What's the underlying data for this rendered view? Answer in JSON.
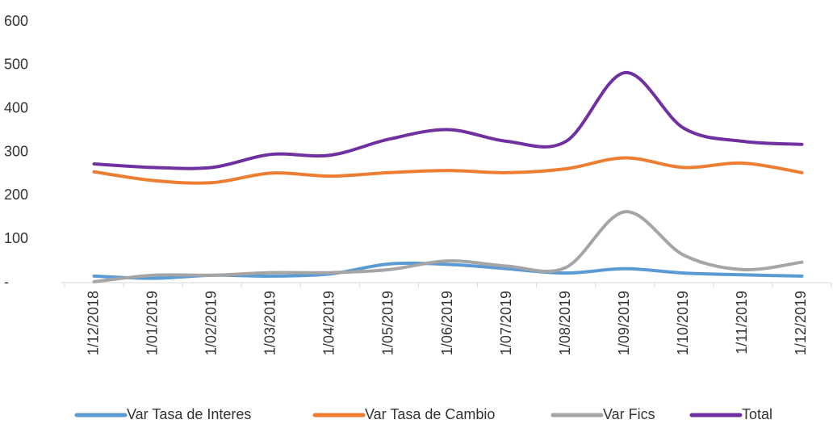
{
  "chart_data": {
    "type": "line",
    "categories": [
      "1/12/2018",
      "1/01/2019",
      "1/02/2019",
      "1/03/2019",
      "1/04/2019",
      "1/05/2019",
      "1/06/2019",
      "1/07/2019",
      "1/08/2019",
      "1/09/2019",
      "1/10/2019",
      "1/11/2019",
      "1/12/2019"
    ],
    "series": [
      {
        "name": "Var Tasa de Interes",
        "color": "#5b9bd5",
        "values": [
          15,
          10,
          17,
          15,
          20,
          43,
          42,
          32,
          22,
          32,
          22,
          18,
          15
        ]
      },
      {
        "name": "Var Tasa de Cambio",
        "color": "#ed7d31",
        "values": [
          255,
          235,
          230,
          252,
          245,
          253,
          258,
          253,
          262,
          287,
          265,
          275,
          253
        ]
      },
      {
        "name": "Var Fics",
        "color": "#a5a5a5",
        "values": [
          2,
          17,
          17,
          23,
          23,
          30,
          50,
          38,
          35,
          163,
          63,
          30,
          47
        ]
      },
      {
        "name": "Total",
        "color": "#7030a0",
        "values": [
          273,
          265,
          265,
          295,
          293,
          330,
          352,
          325,
          325,
          483,
          355,
          325,
          318
        ]
      }
    ],
    "ylim": [
      0,
      600
    ],
    "yticks": [
      {
        "value": 0,
        "label": "-"
      },
      100,
      200,
      300,
      400,
      500,
      600
    ],
    "legend": "bottom"
  }
}
